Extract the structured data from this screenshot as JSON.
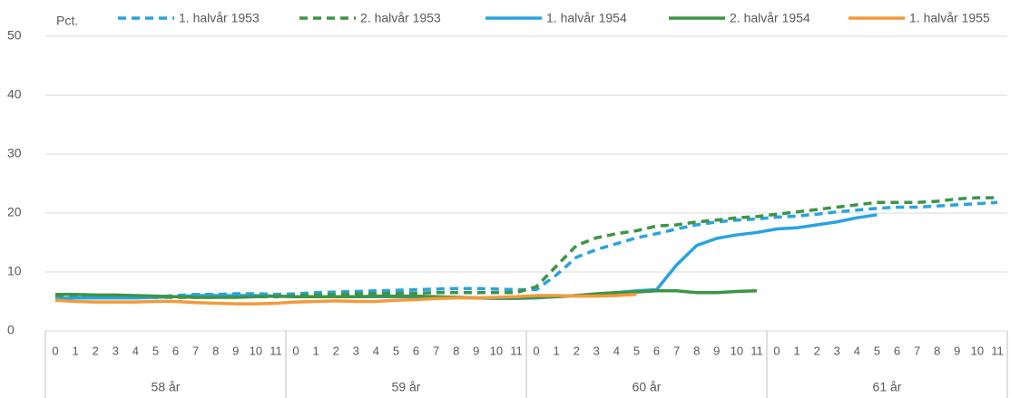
{
  "chart_data": {
    "type": "line",
    "y_label": "Pct.",
    "categories": [
      "0",
      "1",
      "2",
      "3",
      "4",
      "5",
      "6",
      "7",
      "8",
      "9",
      "10",
      "11",
      "0",
      "1",
      "2",
      "3",
      "4",
      "5",
      "6",
      "7",
      "8",
      "9",
      "10",
      "11",
      "0",
      "1",
      "2",
      "3",
      "4",
      "5",
      "6",
      "7",
      "8",
      "9",
      "10",
      "11",
      "0",
      "1",
      "2",
      "3",
      "4",
      "5",
      "6",
      "7",
      "8",
      "9",
      "10",
      "11"
    ],
    "category_groups": [
      "58 år",
      "59 år",
      "60 år",
      "61 år"
    ],
    "ylim": [
      0,
      50
    ],
    "yticks": [
      0,
      10,
      20,
      30,
      40,
      50
    ],
    "grid": true,
    "legend": "top",
    "series": [
      {
        "name": "1. halvår 1953",
        "color": "#29a3e0",
        "dashed": true,
        "values": [
          5.8,
          5.8,
          5.8,
          5.8,
          5.7,
          5.8,
          6.0,
          6.2,
          6.2,
          6.3,
          6.3,
          6.2,
          6.3,
          6.5,
          6.6,
          6.7,
          6.8,
          6.9,
          7.0,
          7.1,
          7.2,
          7.2,
          7.1,
          7.0,
          7.0,
          9.5,
          12.5,
          13.8,
          14.8,
          15.8,
          16.5,
          17.3,
          18.0,
          18.5,
          18.8,
          19.0,
          19.3,
          19.5,
          19.8,
          20.2,
          20.5,
          20.8,
          21.0,
          21.0,
          21.2,
          21.4,
          21.6,
          21.8
        ]
      },
      {
        "name": "2. halvår 1953",
        "color": "#3d9446",
        "dashed": true,
        "values": [
          6.0,
          6.0,
          5.9,
          5.8,
          5.7,
          5.7,
          5.7,
          5.7,
          5.7,
          5.8,
          5.8,
          5.8,
          6.0,
          6.1,
          6.2,
          6.3,
          6.3,
          6.4,
          6.4,
          6.5,
          6.5,
          6.5,
          6.5,
          6.5,
          7.5,
          11.0,
          14.5,
          15.8,
          16.5,
          17.0,
          17.8,
          18.0,
          18.5,
          18.8,
          19.2,
          19.4,
          19.8,
          20.2,
          20.6,
          21.0,
          21.4,
          21.8,
          21.8,
          21.8,
          22.0,
          22.4,
          22.6,
          22.6
        ]
      },
      {
        "name": "1. halvår 1954",
        "color": "#29a3e0",
        "dashed": false,
        "values": [
          5.5,
          5.6,
          5.6,
          5.6,
          5.6,
          5.7,
          5.8,
          6.0,
          6.0,
          6.0,
          6.0,
          5.9,
          5.8,
          5.8,
          5.8,
          5.8,
          5.8,
          5.8,
          5.8,
          5.7,
          5.7,
          5.6,
          5.5,
          5.5,
          5.6,
          5.8,
          6.0,
          6.2,
          6.5,
          6.8,
          7.0,
          11.2,
          14.5,
          15.7,
          16.3,
          16.7,
          17.3,
          17.5,
          18.0,
          18.5,
          19.2,
          19.7,
          null,
          null,
          null,
          null,
          null,
          null
        ]
      },
      {
        "name": "2. halvår 1954",
        "color": "#3d9446",
        "dashed": false,
        "values": [
          6.2,
          6.2,
          6.1,
          6.1,
          6.0,
          5.9,
          5.8,
          5.7,
          5.7,
          5.7,
          5.8,
          5.9,
          5.8,
          5.8,
          5.8,
          5.8,
          5.9,
          5.9,
          5.9,
          5.8,
          5.7,
          5.6,
          5.6,
          5.6,
          5.7,
          5.8,
          6.0,
          6.3,
          6.5,
          6.6,
          6.8,
          6.8,
          6.5,
          6.5,
          6.7,
          6.8,
          null,
          null,
          null,
          null,
          null,
          null,
          null,
          null,
          null,
          null,
          null,
          null
        ]
      },
      {
        "name": "1. halvår 1955",
        "color": "#f39a3b",
        "dashed": false,
        "values": [
          5.2,
          5.0,
          4.9,
          4.9,
          4.9,
          5.0,
          5.0,
          4.8,
          4.7,
          4.6,
          4.6,
          4.7,
          4.9,
          5.0,
          5.1,
          5.0,
          5.0,
          5.2,
          5.3,
          5.5,
          5.6,
          5.6,
          5.7,
          5.8,
          6.0,
          6.0,
          5.9,
          5.9,
          6.0,
          6.2,
          null,
          null,
          null,
          null,
          null,
          null,
          null,
          null,
          null,
          null,
          null,
          null,
          null,
          null,
          null,
          null,
          null,
          null
        ]
      }
    ]
  }
}
